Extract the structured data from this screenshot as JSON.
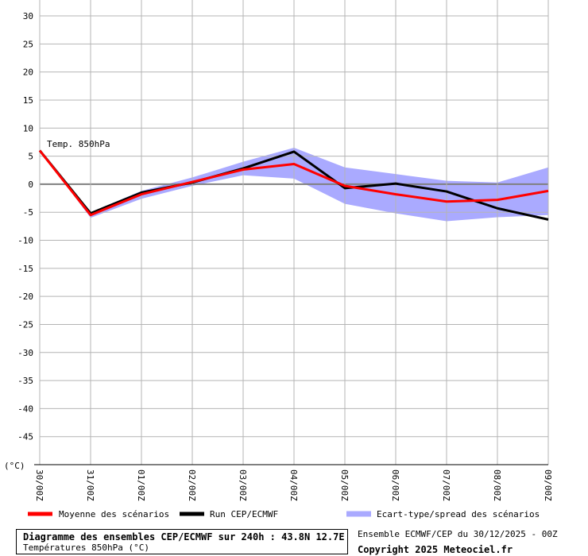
{
  "chart_data": {
    "type": "line",
    "series_label": "Temp. 850hPa",
    "y_unit": "(°C)",
    "ylim": [
      -50,
      30
    ],
    "yticks": [
      30,
      25,
      20,
      15,
      10,
      5,
      0,
      -5,
      -10,
      -15,
      -20,
      -25,
      -30,
      -35,
      -40,
      -45
    ],
    "categories": [
      "30/00Z",
      "31/00Z",
      "01/00Z",
      "02/00Z",
      "03/00Z",
      "04/00Z",
      "05/00Z",
      "06/00Z",
      "07/00Z",
      "08/00Z",
      "09/00Z"
    ],
    "grid": true,
    "series": [
      {
        "name": "Moyenne des scénarios",
        "color": "#ff0000",
        "values": [
          6.0,
          -5.5,
          -1.8,
          0.4,
          2.6,
          3.6,
          -0.3,
          -1.8,
          -3.1,
          -2.8,
          -1.2
        ]
      },
      {
        "name": "Run CEP/ECMWF",
        "color": "#000000",
        "values": [
          6.0,
          -5.2,
          -1.5,
          0.3,
          2.8,
          5.8,
          -0.7,
          0.1,
          -1.3,
          -4.3,
          -6.3
        ]
      }
    ],
    "spread": {
      "name": "Ecart-type/spread des scénarios",
      "color": "#aaaaff",
      "upper": [
        6.0,
        -5.0,
        -1.2,
        1.2,
        4.0,
        6.5,
        3.0,
        1.8,
        0.6,
        0.3,
        3.0
      ],
      "lower": [
        6.0,
        -6.0,
        -2.6,
        -0.3,
        1.6,
        1.0,
        -3.5,
        -5.2,
        -6.6,
        -5.9,
        -5.5
      ]
    }
  },
  "legend": {
    "mean_label": "Moyenne des scénarios",
    "run_label": "Run CEP/ECMWF",
    "spread_label": "Ecart-type/spread des scénarios"
  },
  "caption": {
    "title": "Diagramme des ensembles CEP/ECMWF sur 240h : 43.8N 12.7E",
    "subtitle": "Températures 850hPa (°C)"
  },
  "source_note": "Ensemble ECMWF/CEP du 30/12/2025 - 00Z",
  "copyright": "Copyright 2025 Meteociel.fr"
}
